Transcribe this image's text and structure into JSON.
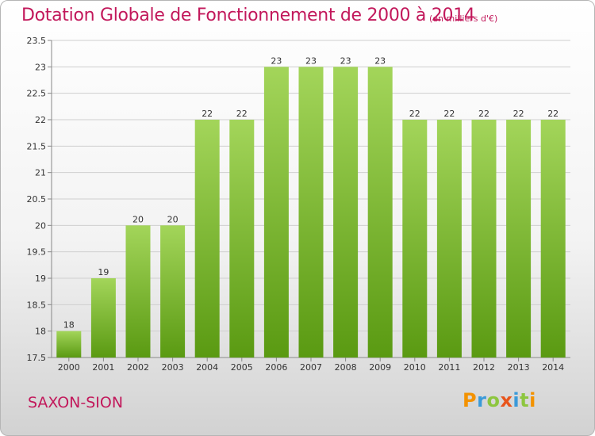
{
  "header": {
    "title": "Dotation Globale de Fonctionnement de 2000 à 2014",
    "unit": "(en milliers d'€)"
  },
  "footer": {
    "place": "SAXON-SION",
    "logo": "Proxiti"
  },
  "colors": {
    "title": "#c2185b",
    "bar_top": "#a3d55a",
    "bar_bottom": "#5a9a12",
    "grid": "#cfcfcf"
  },
  "chart_data": {
    "type": "bar",
    "categories": [
      "2000",
      "2001",
      "2002",
      "2003",
      "2004",
      "2005",
      "2006",
      "2007",
      "2008",
      "2009",
      "2010",
      "2011",
      "2012",
      "2013",
      "2014"
    ],
    "values": [
      18,
      19,
      20,
      20,
      22,
      22,
      23,
      23,
      23,
      23,
      22,
      22,
      22,
      22,
      22
    ],
    "data_labels": [
      "18",
      "19",
      "20",
      "20",
      "22",
      "22",
      "23",
      "23",
      "23",
      "23",
      "22",
      "22",
      "22",
      "22",
      "22"
    ],
    "y_ticks": [
      "17.5",
      "18",
      "18.5",
      "19",
      "19.5",
      "20",
      "20.5",
      "21",
      "21.5",
      "22",
      "22.5",
      "23",
      "23.5"
    ],
    "ylim": [
      17.5,
      23.5
    ],
    "grid": true,
    "legend": "none"
  }
}
